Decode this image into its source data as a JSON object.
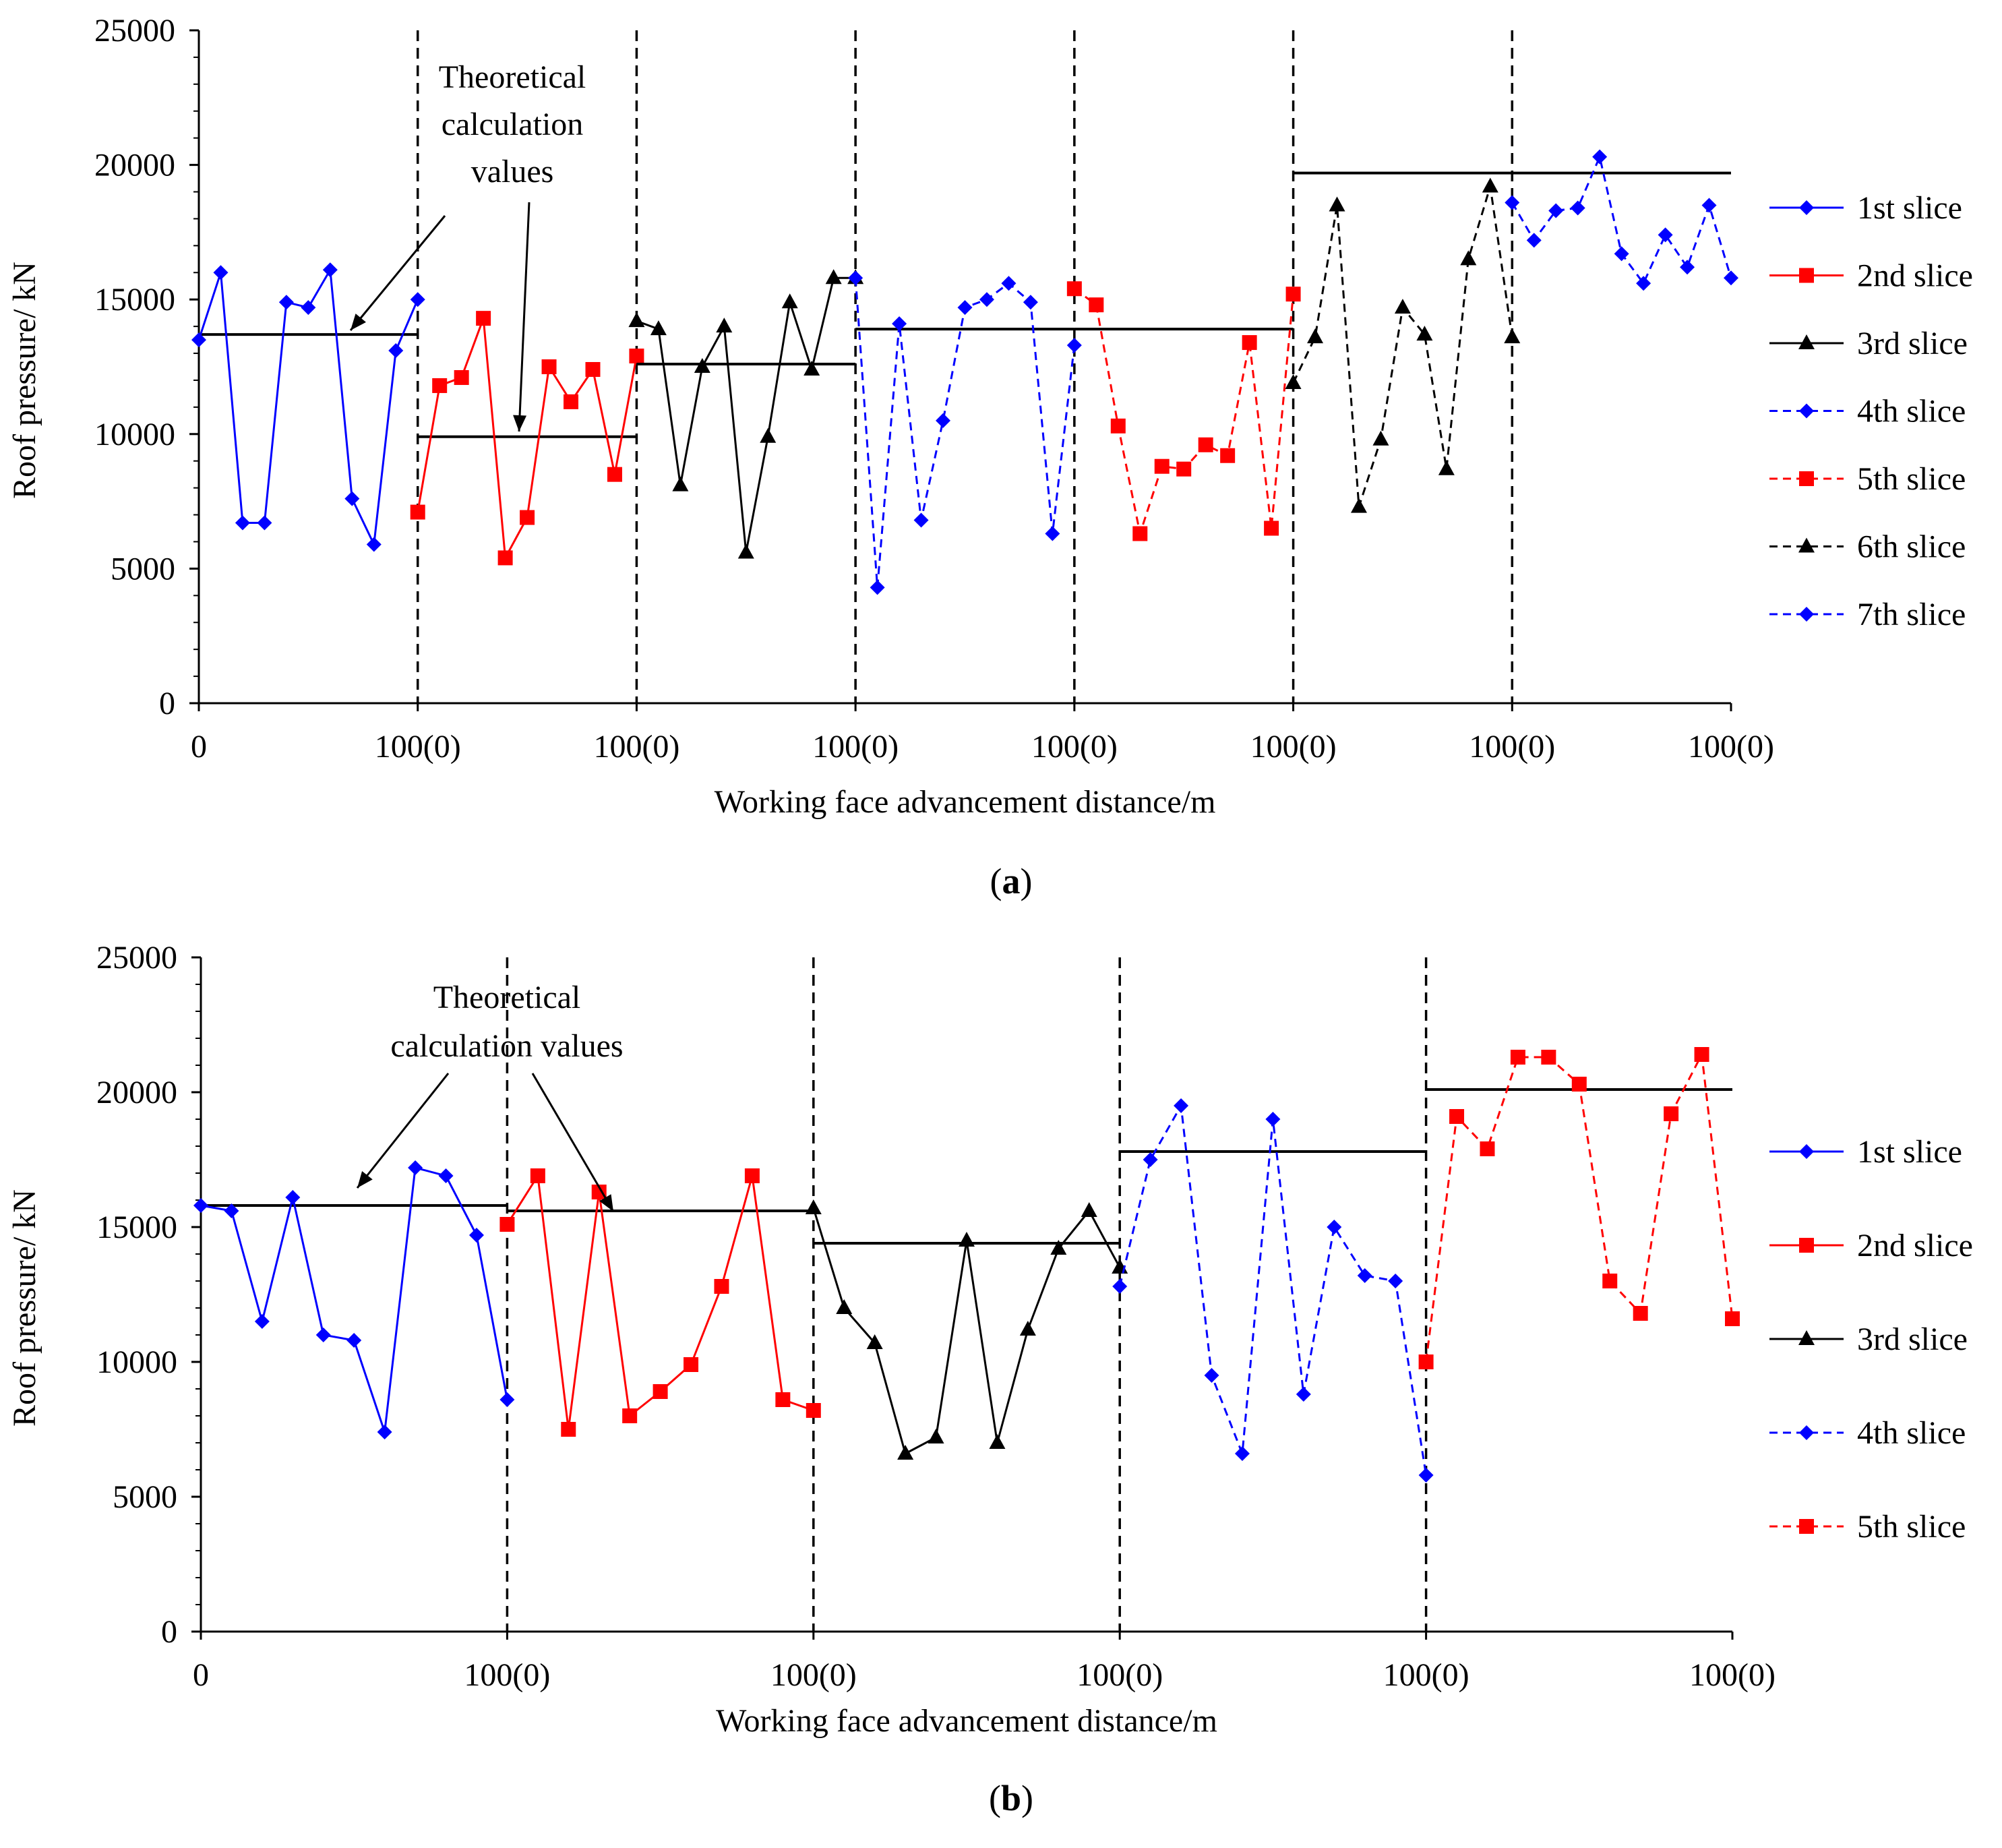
{
  "chart_data": [
    {
      "panel_label": "(a)",
      "panel_letter": "a",
      "type": "line",
      "xlabel": "Working face advancement distance/m",
      "ylabel": "Roof pressure/ kN",
      "ylim": [
        0,
        25000
      ],
      "y_ticks": [
        "0",
        "5000",
        "10000",
        "15000",
        "20000",
        "25000"
      ],
      "x_ticks": [
        "0",
        "100(0)",
        "100(0)",
        "100(0)",
        "100(0)",
        "100(0)",
        "100(0)",
        "100(0)"
      ],
      "annotation": "Theoretical\ncalculation\nvalues",
      "legend_position": "right",
      "series": [
        {
          "name": "1st slice",
          "color": "#0000ff",
          "marker": "diamond",
          "dashed": false,
          "values": [
            13500,
            16000,
            6700,
            6700,
            14900,
            14700,
            16100,
            7600,
            5900,
            13100,
            15000
          ],
          "theoretical": 13700
        },
        {
          "name": "2nd slice",
          "color": "#ff0000",
          "marker": "square",
          "dashed": false,
          "values": [
            7100,
            11800,
            12100,
            14300,
            5400,
            6900,
            12500,
            11200,
            12400,
            8500,
            12900
          ],
          "theoretical": 9900
        },
        {
          "name": "3rd slice",
          "color": "#000000",
          "marker": "triangle",
          "dashed": false,
          "values": [
            14200,
            13900,
            8100,
            12500,
            14000,
            5600,
            9900,
            14900,
            12400,
            15800,
            15800
          ],
          "theoretical": 12600
        },
        {
          "name": "4th slice",
          "color": "#0000ff",
          "marker": "diamond",
          "dashed": true,
          "values": [
            15800,
            4300,
            14100,
            6800,
            10500,
            14700,
            15000,
            15600,
            14900,
            6300,
            13300
          ],
          "theoretical": 13900
        },
        {
          "name": "5th slice",
          "color": "#ff0000",
          "marker": "square",
          "dashed": true,
          "values": [
            15400,
            14800,
            10300,
            6300,
            8800,
            8700,
            9600,
            9200,
            13400,
            6500,
            15200
          ],
          "theoretical": 13900
        },
        {
          "name": "6th slice",
          "color": "#000000",
          "marker": "triangle",
          "dashed": true,
          "values": [
            11900,
            13600,
            18500,
            7300,
            9800,
            14700,
            13700,
            8700,
            16500,
            19200,
            13600
          ],
          "theoretical": 19700
        },
        {
          "name": "7th slice",
          "color": "#0000ff",
          "marker": "diamond",
          "dashed": true,
          "values": [
            18600,
            17200,
            18300,
            18400,
            20300,
            16700,
            15600,
            17400,
            16200,
            18500,
            15800
          ],
          "theoretical": 19700
        }
      ]
    },
    {
      "panel_label": "(b)",
      "panel_letter": "b",
      "type": "line",
      "xlabel": "Working face advancement distance/m",
      "ylabel": "Roof pressure/ kN",
      "ylim": [
        0,
        25000
      ],
      "y_ticks": [
        "0",
        "5000",
        "10000",
        "15000",
        "20000",
        "25000"
      ],
      "x_ticks": [
        "0",
        "100(0)",
        "100(0)",
        "100(0)",
        "100(0)",
        "100(0)"
      ],
      "annotation": "Theoretical\ncalculation values",
      "legend_position": "right",
      "series": [
        {
          "name": "1st slice",
          "color": "#0000ff",
          "marker": "diamond",
          "dashed": false,
          "values": [
            15800,
            15600,
            11500,
            16100,
            11000,
            10800,
            7400,
            17200,
            16900,
            14700,
            8600
          ],
          "theoretical": 15800
        },
        {
          "name": "2nd slice",
          "color": "#ff0000",
          "marker": "square",
          "dashed": false,
          "values": [
            15100,
            16900,
            7500,
            16300,
            8000,
            8900,
            9900,
            12800,
            16900,
            8600,
            8200
          ],
          "theoretical": 15600
        },
        {
          "name": "3rd slice",
          "color": "#000000",
          "marker": "triangle",
          "dashed": false,
          "values": [
            15700,
            12000,
            10700,
            6600,
            7200,
            14500,
            7000,
            11200,
            14200,
            15600,
            13500
          ],
          "theoretical": 14400
        },
        {
          "name": "4th slice",
          "color": "#0000ff",
          "marker": "diamond",
          "dashed": true,
          "values": [
            12800,
            17500,
            19500,
            9500,
            6600,
            19000,
            8800,
            15000,
            13200,
            13000,
            5800
          ],
          "theoretical": 17800
        },
        {
          "name": "5th slice",
          "color": "#ff0000",
          "marker": "square",
          "dashed": true,
          "values": [
            10000,
            19100,
            17900,
            21300,
            21300,
            20300,
            13000,
            11800,
            19200,
            21400,
            11600
          ],
          "theoretical": 20100
        }
      ]
    }
  ]
}
